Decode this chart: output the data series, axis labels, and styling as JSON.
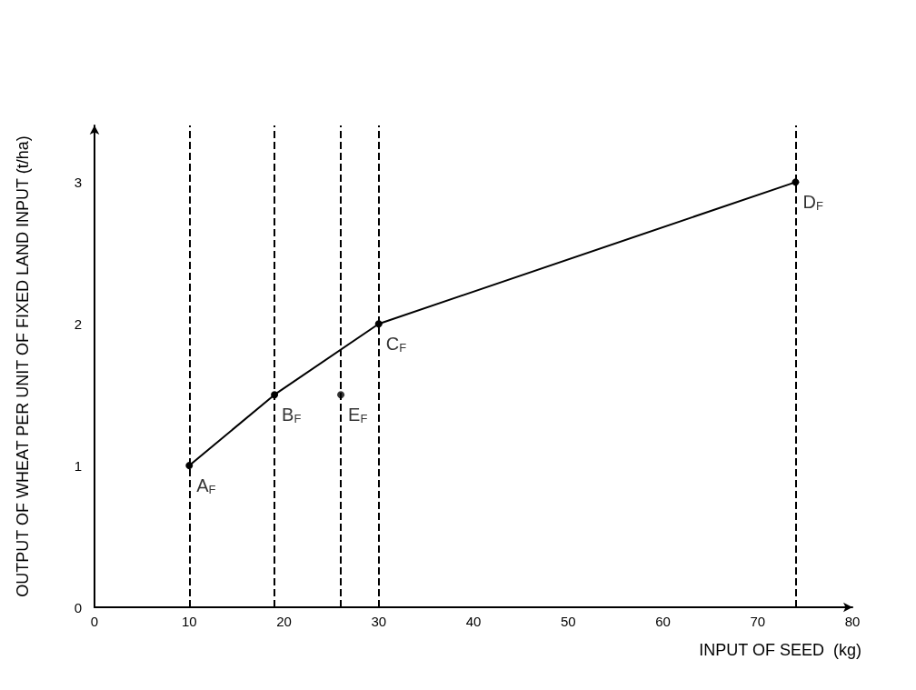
{
  "chart_data": {
    "type": "line",
    "xlabel": "INPUT OF SEED  (kg)",
    "ylabel": "OUTPUT OF WHEAT PER UNIT OF FIXED LAND INPUT (t/ha)",
    "series": [
      {
        "color": "#000000",
        "x": [
          10,
          19,
          30,
          74
        ],
        "values": [
          1,
          1.5,
          2,
          3
        ]
      },
      {
        "type": "scatter",
        "color": "#000000",
        "x": [
          26
        ],
        "values": [
          1.5
        ]
      }
    ],
    "xlim": [
      0,
      80
    ],
    "xticks": [
      0,
      10,
      20,
      30,
      40,
      50,
      60,
      70,
      80
    ],
    "ylim": [
      0,
      3.4
    ],
    "yticks": [
      0,
      1,
      2,
      3
    ],
    "grid": false,
    "marker": "circle",
    "line_style": "solid",
    "ref_lines": [
      {
        "axis": "x",
        "value": 10,
        "line_style": "dashed",
        "color": "#000000"
      },
      {
        "axis": "x",
        "value": 19,
        "line_style": "dashed",
        "color": "#000000"
      },
      {
        "axis": "x",
        "value": 26,
        "line_style": "dashed",
        "color": "#000000"
      },
      {
        "axis": "x",
        "value": 30,
        "line_style": "dashed",
        "color": "#000000"
      },
      {
        "axis": "x",
        "value": 74,
        "line_style": "dashed",
        "color": "#000000"
      }
    ],
    "annotations": [
      {
        "text": "A$_{F}$",
        "x": 10,
        "y": 1
      },
      {
        "text": "B$_{F}$",
        "x": 19,
        "y": 1.5
      },
      {
        "text": "E$_{F}$",
        "x": 26,
        "y": 1.5
      },
      {
        "text": "C$_{F}$",
        "x": 30,
        "y": 2
      },
      {
        "text": "D$_{F}$",
        "x": 74,
        "y": 3
      }
    ]
  }
}
